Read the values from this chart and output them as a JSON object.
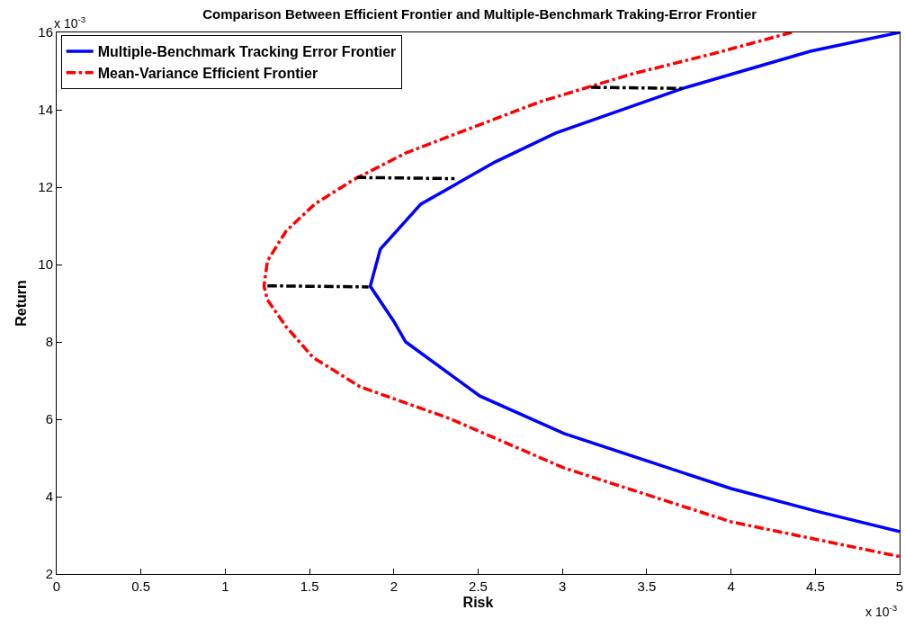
{
  "chart_data": {
    "type": "line",
    "title": "Comparison Between Efficient Frontier and Multiple-Benchmark Traking-Error Frontier",
    "xlabel": "Risk",
    "ylabel": "Return",
    "annotations": [
      "x 10$^{-3}$",
      "x 10$^{-3}$"
    ],
    "xlim": [
      0,
      5
    ],
    "xticks": [
      0,
      0.5,
      1,
      1.5,
      2,
      2.5,
      3,
      3.5,
      4,
      4.5,
      5
    ],
    "ylim": [
      2,
      16
    ],
    "yticks": [
      2,
      4,
      6,
      8,
      10,
      12,
      14,
      16
    ],
    "grid": false,
    "legend": "top left",
    "marker": "none",
    "series": [
      {
        "name": "Multiple-Benchmark Tracking Error Frontier",
        "color": "#0000ff",
        "line_style": "solid",
        "x": [
          5,
          4.47,
          3.72,
          2.96,
          2.6,
          2.16,
          1.92,
          1.86,
          2.0,
          2.07,
          2.51,
          3.01,
          4.0,
          4.5,
          5
        ],
        "values": [
          16,
          15.51,
          14.56,
          13.4,
          12.65,
          11.56,
          10.4,
          9.44,
          8.53,
          8.0,
          6.6,
          5.63,
          4.21,
          3.63,
          3.1
        ]
      },
      {
        "name": "Mean-Variance Efficient Frontier",
        "color": "#ff0000",
        "line_style": "dashdot",
        "x": [
          4.36,
          3.93,
          3.4,
          2.87,
          2.32,
          2.07,
          1.76,
          1.53,
          1.36,
          1.25,
          1.23,
          1.25,
          1.36,
          1.52,
          1.8,
          2.33,
          3.01,
          4.0,
          5
        ],
        "values": [
          16,
          15.49,
          14.91,
          14.21,
          13.3,
          12.88,
          12.19,
          11.56,
          10.86,
          10.09,
          9.44,
          9.09,
          8.4,
          7.6,
          6.84,
          6.02,
          4.74,
          3.35,
          2.45
        ]
      },
      {
        "color": "#000000",
        "line_style": "dashdot",
        "x": [
          1.25,
          1.85
        ],
        "values": [
          9.45,
          9.42
        ]
      },
      {
        "color": "#000000",
        "line_style": "dashdot",
        "x": [
          1.78,
          2.36
        ],
        "values": [
          12.25,
          12.22
        ]
      },
      {
        "color": "#000000",
        "line_style": "dashdot",
        "x": [
          3.17,
          3.72
        ],
        "values": [
          14.58,
          14.55
        ]
      }
    ]
  }
}
